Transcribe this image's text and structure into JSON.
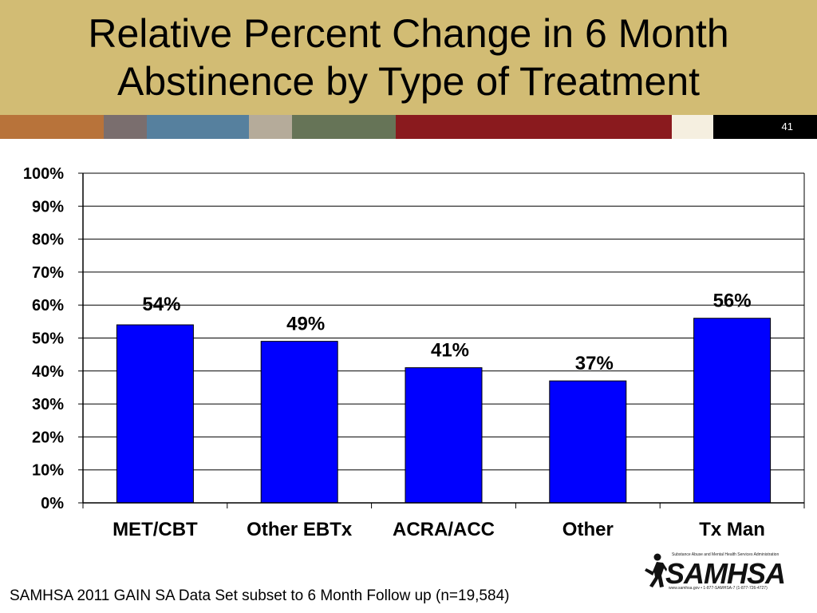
{
  "slide": {
    "title_line1": "Relative Percent Change in 6 Month",
    "title_line2": "Abstinence by Type of Treatment",
    "slide_number": "41",
    "footnote": "SAMHSA 2011 GAIN SA Data Set subset to 6 Month Follow up (n=19,584)",
    "logo": {
      "wordmark": "SAMHSA",
      "tagline": "Substance Abuse and Mental Health Services Administration",
      "contact": "www.samhsa.gov • 1-877-SAMHSA-7 (1-877-726-4727)"
    },
    "colors": {
      "title_band": "#d2bc74",
      "stripes": [
        "#b8733a",
        "#7a6e6e",
        "#56809e",
        "#b5ab9a",
        "#667457",
        "#8a1a1e",
        "#f5efe0",
        "#000000"
      ]
    }
  },
  "chart_data": {
    "type": "bar",
    "title": "",
    "xlabel": "",
    "ylabel": "",
    "categories": [
      "MET/CBT",
      "Other EBTx",
      "ACRA/ACC",
      "Other",
      "Tx Man"
    ],
    "values": [
      54,
      49,
      41,
      37,
      56
    ],
    "data_labels": [
      "54%",
      "49%",
      "41%",
      "37%",
      "56%"
    ],
    "y_ticks": [
      "0%",
      "10%",
      "20%",
      "30%",
      "40%",
      "50%",
      "60%",
      "70%",
      "80%",
      "90%",
      "100%"
    ],
    "ylim": [
      0,
      100
    ],
    "grid": true,
    "legend": "none",
    "bar_color": "#0000ff"
  }
}
